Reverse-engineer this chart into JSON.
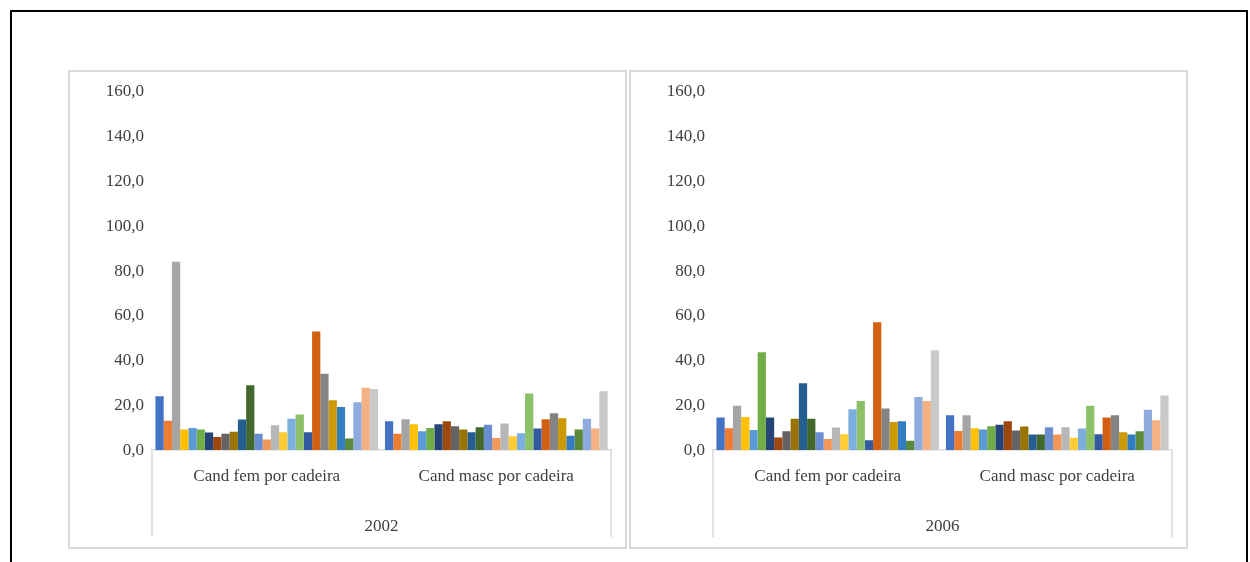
{
  "chart_data": [
    {
      "type": "bar",
      "xlabel": "2002",
      "categories": [
        "Cand fem por cadeira",
        "Cand masc por cadeira"
      ],
      "ylim": [
        0,
        160
      ],
      "yticks": [
        {
          "value": 0,
          "label": "0,0"
        },
        {
          "value": 20,
          "label": "20,0"
        },
        {
          "value": 40,
          "label": "40,0"
        },
        {
          "value": 60,
          "label": "60,0"
        },
        {
          "value": 80,
          "label": "80,0"
        },
        {
          "value": 100,
          "label": "100,0"
        },
        {
          "value": 120,
          "label": "120,0"
        },
        {
          "value": 140,
          "label": "140,0"
        },
        {
          "value": 160,
          "label": "160,0"
        }
      ],
      "grid": false,
      "legend": false,
      "series": [
        {
          "color": "#4472c4",
          "values": [
            24.1,
            12.9
          ]
        },
        {
          "color": "#ed7d31",
          "values": [
            13.2,
            7.4
          ]
        },
        {
          "color": "#a5a5a5",
          "values": [
            84.2,
            13.8
          ]
        },
        {
          "color": "#ffc000",
          "values": [
            9.2,
            11.6
          ]
        },
        {
          "color": "#5b9bd5",
          "values": [
            9.9,
            8.5
          ]
        },
        {
          "color": "#70ad47",
          "values": [
            9.2,
            9.9
          ]
        },
        {
          "color": "#264478",
          "values": [
            7.9,
            11.6
          ]
        },
        {
          "color": "#9e480e",
          "values": [
            5.9,
            12.9
          ]
        },
        {
          "color": "#636363",
          "values": [
            7.4,
            10.7
          ]
        },
        {
          "color": "#997300",
          "values": [
            8.2,
            9.2
          ]
        },
        {
          "color": "#255e91",
          "values": [
            13.7,
            8.0
          ]
        },
        {
          "color": "#43682b",
          "values": [
            29.0,
            10.2
          ]
        },
        {
          "color": "#698ed0",
          "values": [
            7.3,
            11.4
          ]
        },
        {
          "color": "#f1975a",
          "values": [
            4.8,
            5.5
          ]
        },
        {
          "color": "#b7b7b7",
          "values": [
            11.1,
            11.9
          ]
        },
        {
          "color": "#ffcd33",
          "values": [
            8.0,
            6.2
          ]
        },
        {
          "color": "#7cafdd",
          "values": [
            14.0,
            7.6
          ]
        },
        {
          "color": "#8cc168",
          "values": [
            16.0,
            25.3
          ]
        },
        {
          "color": "#335aa1",
          "values": [
            8.0,
            9.7
          ]
        },
        {
          "color": "#d26012",
          "values": [
            53.0,
            13.8
          ]
        },
        {
          "color": "#848484",
          "values": [
            34.2,
            16.5
          ]
        },
        {
          "color": "#cc9a00",
          "values": [
            22.3,
            14.3
          ]
        },
        {
          "color": "#327dc2",
          "values": [
            19.3,
            6.5
          ]
        },
        {
          "color": "#5a8a39",
          "values": [
            5.2,
            9.2
          ]
        },
        {
          "color": "#8faadc",
          "values": [
            21.4,
            14.1
          ]
        },
        {
          "color": "#f4b183",
          "values": [
            27.9,
            9.7
          ]
        },
        {
          "color": "#c9c9c9",
          "values": [
            27.3,
            26.3
          ]
        }
      ]
    },
    {
      "type": "bar",
      "xlabel": "2006",
      "categories": [
        "Cand fem por cadeira",
        "Cand masc por cadeira"
      ],
      "ylim": [
        0,
        160
      ],
      "yticks": [
        {
          "value": 0,
          "label": "0,0"
        },
        {
          "value": 20,
          "label": "20,0"
        },
        {
          "value": 40,
          "label": "40,0"
        },
        {
          "value": 60,
          "label": "60,0"
        },
        {
          "value": 80,
          "label": "80,0"
        },
        {
          "value": 100,
          "label": "100,0"
        },
        {
          "value": 120,
          "label": "120,0"
        },
        {
          "value": 140,
          "label": "140,0"
        },
        {
          "value": 160,
          "label": "160,0"
        }
      ],
      "grid": false,
      "legend": false,
      "series": [
        {
          "color": "#4472c4",
          "values": [
            14.6,
            15.6
          ]
        },
        {
          "color": "#ed7d31",
          "values": [
            9.8,
            8.6
          ]
        },
        {
          "color": "#a5a5a5",
          "values": [
            19.9,
            15.6
          ]
        },
        {
          "color": "#ffc000",
          "values": [
            14.8,
            9.8
          ]
        },
        {
          "color": "#5b9bd5",
          "values": [
            9.0,
            9.2
          ]
        },
        {
          "color": "#70ad47",
          "values": [
            43.7,
            10.7
          ]
        },
        {
          "color": "#264478",
          "values": [
            14.6,
            11.4
          ]
        },
        {
          "color": "#9e480e",
          "values": [
            5.7,
            12.9
          ]
        },
        {
          "color": "#636363",
          "values": [
            8.5,
            8.8
          ]
        },
        {
          "color": "#997300",
          "values": [
            14.1,
            10.6
          ]
        },
        {
          "color": "#255e91",
          "values": [
            29.9,
            7.0
          ]
        },
        {
          "color": "#43682b",
          "values": [
            14.0,
            7.0
          ]
        },
        {
          "color": "#698ed0",
          "values": [
            8.0,
            10.2
          ]
        },
        {
          "color": "#f1975a",
          "values": [
            5.0,
            7.0
          ]
        },
        {
          "color": "#b7b7b7",
          "values": [
            10.1,
            10.2
          ]
        },
        {
          "color": "#ffcd33",
          "values": [
            7.1,
            5.6
          ]
        },
        {
          "color": "#7cafdd",
          "values": [
            18.3,
            9.7
          ]
        },
        {
          "color": "#8cc168",
          "values": [
            22.0,
            19.9
          ]
        },
        {
          "color": "#335aa1",
          "values": [
            4.5,
            7.1
          ]
        },
        {
          "color": "#d26012",
          "values": [
            57.2,
            14.6
          ]
        },
        {
          "color": "#848484",
          "values": [
            18.6,
            15.6
          ]
        },
        {
          "color": "#cc9a00",
          "values": [
            12.6,
            8.0
          ]
        },
        {
          "color": "#327dc2",
          "values": [
            12.9,
            7.0
          ]
        },
        {
          "color": "#5a8a39",
          "values": [
            4.2,
            8.5
          ]
        },
        {
          "color": "#8faadc",
          "values": [
            23.8,
            18.1
          ]
        },
        {
          "color": "#f4b183",
          "values": [
            22.0,
            13.4
          ]
        },
        {
          "color": "#c9c9c9",
          "values": [
            44.7,
            24.4
          ]
        }
      ]
    }
  ]
}
